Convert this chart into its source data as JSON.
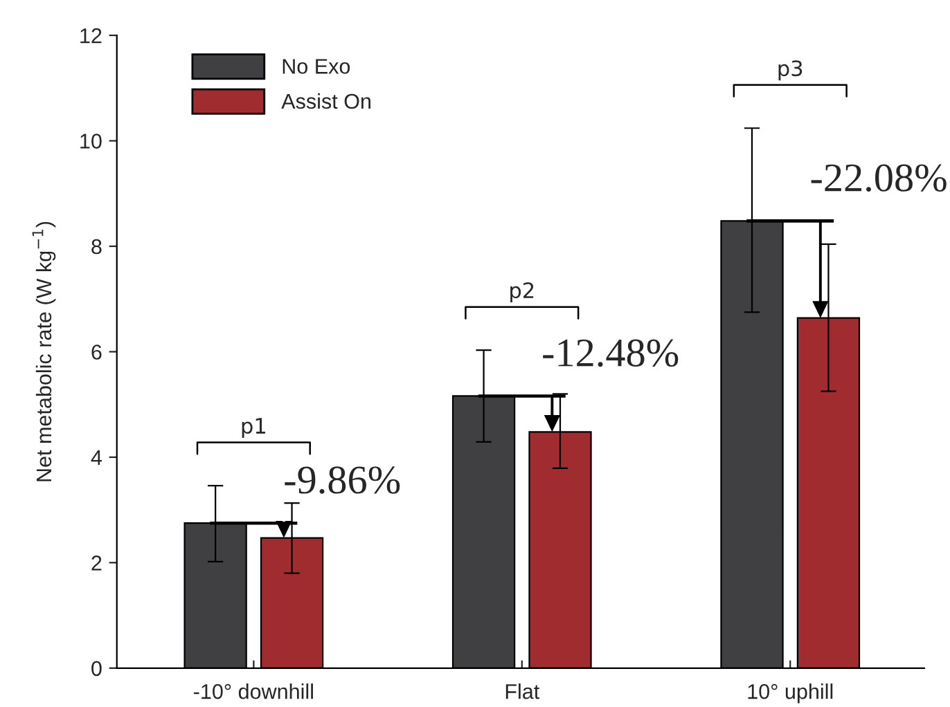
{
  "chart_data": {
    "type": "bar",
    "ylabel": "Net metabolic rate (W kg$^{−1}$)",
    "categories": [
      "-10° downhill",
      "Flat",
      "10° uphill"
    ],
    "series": [
      {
        "name": "No Exo",
        "color": "#404042",
        "values": [
          2.75,
          5.16,
          8.48
        ],
        "errors": [
          [
            2.02,
            3.46
          ],
          [
            4.29,
            6.03
          ],
          [
            6.75,
            10.24
          ]
        ]
      },
      {
        "name": "Assist On",
        "color": "#a02c30",
        "values": [
          2.47,
          4.48,
          6.64
        ],
        "errors": [
          [
            1.8,
            3.13
          ],
          [
            3.79,
            5.2
          ],
          [
            5.25,
            8.04
          ]
        ]
      }
    ],
    "ylim": [
      0,
      12
    ],
    "yticks": [
      0,
      2,
      4,
      6,
      8,
      10,
      12
    ],
    "grid": false,
    "legend": "top left",
    "annotations": [
      "p1",
      "p2",
      "p3",
      "-9.86%",
      "-12.48%",
      "-22.08%"
    ]
  }
}
